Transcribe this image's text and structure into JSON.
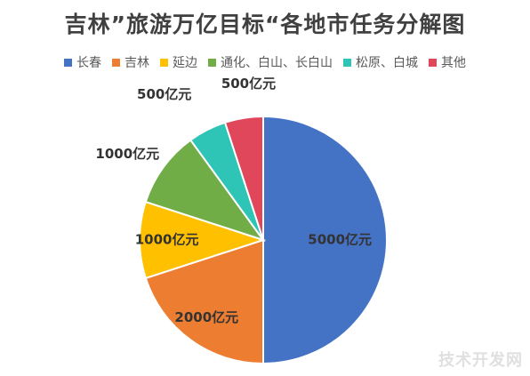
{
  "chart_data": {
    "type": "pie",
    "title": "吉林”旅游万亿目标“各地市任务分解图",
    "categories": [
      "长春",
      "吉林",
      "延边",
      "通化、白山、长白山",
      "松原、白城",
      "其他"
    ],
    "values": [
      5000,
      2000,
      1000,
      1000,
      500,
      500
    ],
    "unit": "亿元",
    "data_labels": [
      "5000亿元",
      "2000亿元",
      "1000亿元",
      "1000亿元",
      "500亿元",
      "500亿元"
    ],
    "colors": [
      "#4472C4",
      "#ED7D31",
      "#FFC000",
      "#70AD47",
      "#2EC4B6",
      "#E0475B"
    ],
    "legend_position": "top"
  },
  "watermark": "技术开发网"
}
